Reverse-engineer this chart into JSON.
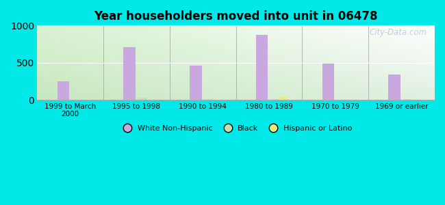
{
  "title": "Year householders moved into unit in 06478",
  "categories": [
    "1999 to March\n2000",
    "1995 to 1998",
    "1990 to 1994",
    "1980 to 1989",
    "1970 to 1979",
    "1969 or earlier"
  ],
  "white_non_hispanic": [
    250,
    710,
    460,
    875,
    490,
    345
  ],
  "black": [
    0,
    30,
    15,
    10,
    0,
    10
  ],
  "hispanic_or_latino": [
    0,
    10,
    5,
    40,
    0,
    5
  ],
  "white_color": "#c9a8e0",
  "black_color": "#c8ddb0",
  "hispanic_color": "#f0e87a",
  "bg_outer": "#00e8e8",
  "bg_plot_top_left": "#d8efd8",
  "bg_plot_top_right": "#ffffff",
  "bg_plot_bottom": "#c8e8c0",
  "ylim": [
    0,
    1000
  ],
  "yticks": [
    0,
    500,
    1000
  ],
  "bar_width": 0.18,
  "watermark": "City-Data.com"
}
